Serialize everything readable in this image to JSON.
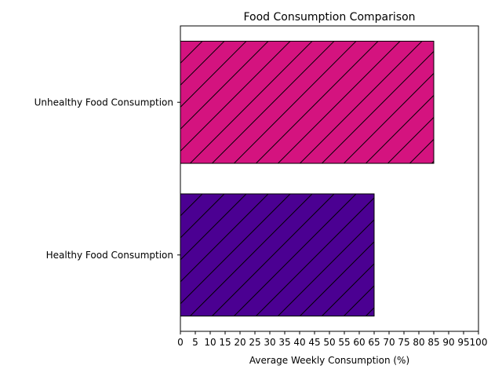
{
  "chart_data": {
    "type": "bar",
    "orientation": "horizontal",
    "title": "Food Consumption Comparison",
    "xlabel": "Average Weekly Consumption (%)",
    "ylabel": "",
    "xlim": [
      0,
      100
    ],
    "x_ticks": [
      0,
      5,
      10,
      15,
      20,
      25,
      30,
      35,
      40,
      45,
      50,
      55,
      60,
      65,
      70,
      75,
      80,
      85,
      90,
      95,
      100
    ],
    "categories": [
      "Healthy Food Consumption",
      "Unhealthy Food Consumption"
    ],
    "values": [
      65,
      85
    ],
    "colors": [
      "#4b0092",
      "#d4137f"
    ],
    "hatch": "diagonal",
    "grid": false,
    "legend": "none"
  }
}
